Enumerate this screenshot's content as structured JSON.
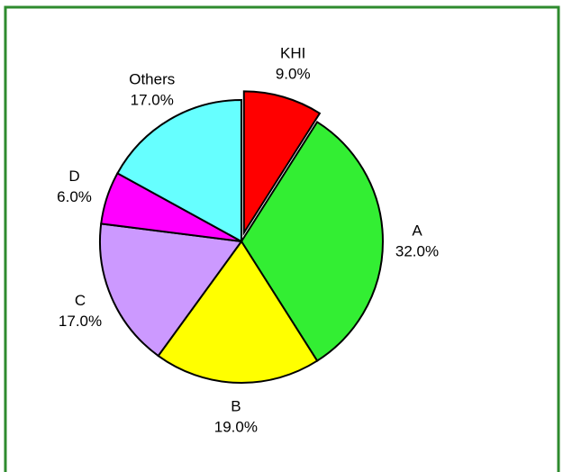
{
  "chart_data": {
    "type": "pie",
    "categories": [
      "KHI",
      "A",
      "B",
      "C",
      "D",
      "Others"
    ],
    "values": [
      9,
      32,
      19,
      17,
      6,
      17
    ],
    "value_labels": [
      "9.0%",
      "32.0%",
      "19.0%",
      "17.0%",
      "6.0%",
      "17.0%"
    ],
    "colors": [
      "#ff0000",
      "#33ee33",
      "#ffff00",
      "#cc99ff",
      "#ff00ff",
      "#66ffff"
    ],
    "exploded": [
      true,
      false,
      false,
      false,
      false,
      false
    ]
  }
}
